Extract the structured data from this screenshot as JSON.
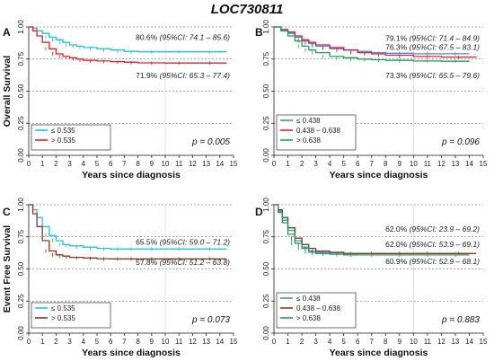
{
  "title": "LOC730811",
  "chart_data": [
    {
      "panel": "A",
      "type": "line",
      "step": true,
      "ylabel": "Overall Survival",
      "xlabel": "Years since diagnosis",
      "xlim": [
        0,
        15
      ],
      "ylim": [
        0,
        1
      ],
      "xticks": [
        "0",
        "1",
        "2",
        "3",
        "4",
        "5",
        "6",
        "7",
        "8",
        "9",
        "10",
        "11",
        "12",
        "13",
        "14",
        "15"
      ],
      "yticks": [
        "0.00",
        "0.25",
        "0.50",
        "0.75",
        "1.00"
      ],
      "grid": "dotted horizontal at y ticks, light vertical at x = 10",
      "pvalue": "p = 0.005",
      "legend_position": "bottom-left",
      "series": [
        {
          "name": "≤ 0.535",
          "color": "#22c4d8",
          "x": [
            0,
            0.3,
            0.6,
            1,
            1.5,
            2,
            2.5,
            3,
            3.5,
            4,
            5,
            6,
            7,
            8,
            10,
            12,
            14.5
          ],
          "y": [
            1,
            0.99,
            0.97,
            0.95,
            0.92,
            0.9,
            0.88,
            0.86,
            0.85,
            0.84,
            0.83,
            0.82,
            0.81,
            0.806,
            0.806,
            0.806,
            0.806
          ]
        },
        {
          "name": "> 0.535",
          "color": "#e8202b",
          "x": [
            0,
            0.3,
            0.6,
            1,
            1.5,
            2,
            2.5,
            3,
            3.5,
            4,
            5,
            6,
            7,
            8,
            10,
            12,
            14.5
          ],
          "y": [
            1,
            0.97,
            0.93,
            0.88,
            0.83,
            0.79,
            0.77,
            0.76,
            0.75,
            0.74,
            0.735,
            0.73,
            0.725,
            0.72,
            0.719,
            0.719,
            0.719
          ]
        }
      ],
      "annotations": [
        {
          "text": "80.6%",
          "ci": "(95%CI: 74.1 – 85.6)",
          "y": 0.9
        },
        {
          "text": "71.9%",
          "ci": "(95%CI: 65.3 – 77.4)",
          "y": 0.6
        }
      ]
    },
    {
      "panel": "B",
      "type": "line",
      "step": true,
      "ylabel": "",
      "xlabel": "Years since diagnosis",
      "xlim": [
        0,
        15
      ],
      "ylim": [
        0,
        1
      ],
      "xticks": [
        "0",
        "1",
        "2",
        "3",
        "4",
        "5",
        "6",
        "7",
        "8",
        "9",
        "10",
        "11",
        "12",
        "13",
        "14",
        "15"
      ],
      "yticks": [
        "0.00",
        "0.25",
        "0.50",
        "0.75",
        "1.00"
      ],
      "grid": "dotted horizontal at y ticks, light vertical at x = 10",
      "pvalue": "p = 0.096",
      "legend_position": "bottom-left",
      "series": [
        {
          "name": "≤ 0.438",
          "color": "#4a86e8",
          "x": [
            0,
            0.5,
            1,
            1.5,
            2,
            2.5,
            3,
            4,
            5,
            6,
            7,
            8,
            10,
            12,
            14
          ],
          "y": [
            1,
            0.98,
            0.95,
            0.92,
            0.89,
            0.87,
            0.85,
            0.83,
            0.82,
            0.81,
            0.8,
            0.795,
            0.791,
            0.791,
            0.791
          ]
        },
        {
          "name": "0.438 – 0.638",
          "color": "#e8202b",
          "x": [
            0,
            0.5,
            1,
            1.5,
            2,
            2.5,
            3,
            4,
            5,
            6,
            7,
            8,
            10,
            12,
            14.5
          ],
          "y": [
            1,
            0.98,
            0.96,
            0.93,
            0.9,
            0.88,
            0.86,
            0.84,
            0.82,
            0.8,
            0.79,
            0.78,
            0.77,
            0.765,
            0.763
          ]
        },
        {
          "name": "> 0.638",
          "color": "#1fa05a",
          "x": [
            0,
            0.5,
            1,
            1.5,
            2,
            2.5,
            3,
            4,
            5,
            6,
            7,
            8,
            10,
            12,
            14
          ],
          "y": [
            1,
            0.97,
            0.93,
            0.89,
            0.85,
            0.82,
            0.8,
            0.77,
            0.76,
            0.75,
            0.745,
            0.74,
            0.735,
            0.733,
            0.733
          ]
        }
      ],
      "annotations": [
        {
          "text": "79.1%",
          "ci": "(95%CI: 71.4 – 84.9)",
          "y": 0.89
        },
        {
          "text": "76.3%",
          "ci": "(95%CI: 67.5 – 83.1)",
          "y": 0.82
        },
        {
          "text": "73.3%",
          "ci": "(95%CI: 65.5 – 79.6)",
          "y": 0.6
        }
      ]
    },
    {
      "panel": "C",
      "type": "line",
      "step": true,
      "ylabel": "Event Free Survival",
      "xlabel": "Years since diagnosis",
      "xlim": [
        0,
        15
      ],
      "ylim": [
        0,
        1
      ],
      "xticks": [
        "0",
        "1",
        "2",
        "3",
        "4",
        "5",
        "6",
        "7",
        "8",
        "9",
        "10",
        "11",
        "12",
        "13",
        "14",
        "15"
      ],
      "yticks": [
        "0.00",
        "0.25",
        "0.50",
        "0.75",
        "1.00"
      ],
      "grid": "dotted horizontal at y ticks, light vertical at x = 10",
      "pvalue": "p = 0.073",
      "legend_position": "bottom-left",
      "series": [
        {
          "name": "≤ 0.535",
          "color": "#22c4d8",
          "x": [
            0,
            0.3,
            0.6,
            1,
            1.5,
            2,
            2.5,
            3,
            4,
            5,
            6,
            7,
            8,
            10,
            12,
            14.5
          ],
          "y": [
            1,
            0.96,
            0.9,
            0.83,
            0.76,
            0.72,
            0.69,
            0.68,
            0.67,
            0.66,
            0.655,
            0.655,
            0.655,
            0.655,
            0.655,
            0.655
          ]
        },
        {
          "name": "> 0.535",
          "color": "#8b3a1e",
          "x": [
            0,
            0.3,
            0.6,
            1,
            1.5,
            2,
            2.5,
            3,
            4,
            5,
            6,
            7,
            8,
            10,
            12,
            14.5
          ],
          "y": [
            1,
            0.93,
            0.83,
            0.72,
            0.64,
            0.61,
            0.6,
            0.59,
            0.585,
            0.58,
            0.578,
            0.578,
            0.578,
            0.578,
            0.578,
            0.578
          ]
        }
      ],
      "annotations": [
        {
          "text": "65.5%",
          "ci": "(95%CI: 59.0 – 71.2)",
          "y": 0.69
        },
        {
          "text": "57.8%",
          "ci": "(95%CI: 51.2 – 63.8)",
          "y": 0.53
        }
      ]
    },
    {
      "panel": "D",
      "type": "line",
      "step": true,
      "ylabel": "",
      "xlabel": "Years since diagnosis",
      "xlim": [
        0,
        15
      ],
      "ylim": [
        0,
        1
      ],
      "xticks": [
        "0",
        "1",
        "2",
        "3",
        "4",
        "5",
        "6",
        "7",
        "8",
        "9",
        "10",
        "11",
        "12",
        "13",
        "14",
        "15"
      ],
      "yticks": [
        "0.00",
        "0.25",
        "0.50",
        "0.75",
        "1.00"
      ],
      "grid": "dotted horizontal at y ticks, light vertical at x = 10",
      "pvalue": "p = 0.883",
      "legend_position": "bottom-left",
      "series": [
        {
          "name": "≤ 0.438",
          "color": "#4a86e8",
          "x": [
            0,
            0.3,
            0.6,
            1,
            1.5,
            2,
            2.5,
            3,
            4,
            5,
            6,
            8,
            10,
            12,
            14
          ],
          "y": [
            1,
            0.95,
            0.88,
            0.8,
            0.72,
            0.67,
            0.64,
            0.63,
            0.625,
            0.62,
            0.62,
            0.62,
            0.62,
            0.62,
            0.62
          ]
        },
        {
          "name": "0.438 – 0.638",
          "color": "#8b3a1e",
          "x": [
            0,
            0.3,
            0.6,
            1,
            1.5,
            2,
            2.5,
            3,
            4,
            5,
            6,
            8,
            10,
            12,
            14.5
          ],
          "y": [
            1,
            0.96,
            0.9,
            0.82,
            0.74,
            0.69,
            0.66,
            0.64,
            0.63,
            0.62,
            0.62,
            0.62,
            0.62,
            0.62,
            0.62
          ]
        },
        {
          "name": "> 0.638",
          "color": "#1fa05a",
          "x": [
            0,
            0.3,
            0.6,
            1,
            1.5,
            2,
            2.5,
            3,
            4,
            5,
            6,
            8,
            10,
            12,
            14
          ],
          "y": [
            1,
            0.94,
            0.86,
            0.77,
            0.7,
            0.66,
            0.63,
            0.62,
            0.615,
            0.61,
            0.609,
            0.609,
            0.609,
            0.609,
            0.609
          ]
        }
      ],
      "annotations": [
        {
          "text": "62.0%",
          "ci": "(95%CI: 23.9 – 69.2)",
          "y": 0.79
        },
        {
          "text": "62.0%",
          "ci": "(95%CI: 53.9 – 69.1)",
          "y": 0.67
        },
        {
          "text": "60.9%",
          "ci": "(95%CI: 52.9 – 68.1)",
          "y": 0.54
        }
      ]
    }
  ]
}
